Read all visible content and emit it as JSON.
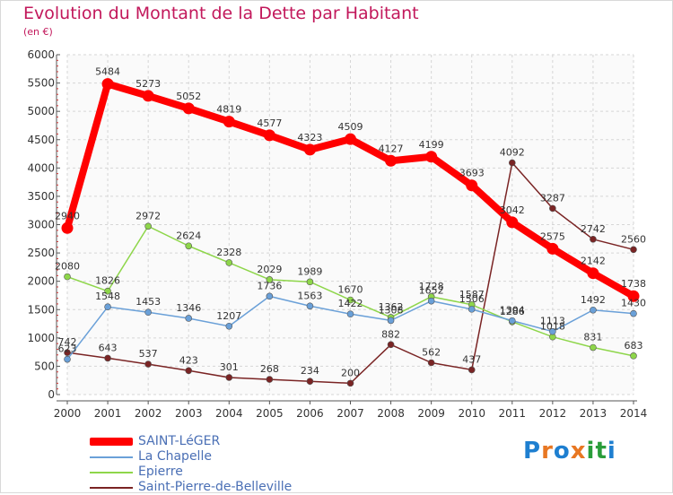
{
  "chart_data": {
    "type": "line",
    "title": "Evolution du Montant de la Dette par Habitant",
    "subtitle": "(en €)",
    "x": [
      "2000",
      "2001",
      "2002",
      "2003",
      "2004",
      "2005",
      "2006",
      "2007",
      "2008",
      "2009",
      "2010",
      "2011",
      "2012",
      "2013",
      "2014"
    ],
    "ylim": [
      0,
      6000
    ],
    "yticks": [
      0,
      500,
      1000,
      1500,
      2000,
      2500,
      3000,
      3500,
      4000,
      4500,
      5000,
      5500,
      6000
    ],
    "grid": true,
    "legend_position": "bottom-left",
    "series": [
      {
        "name": "SAINT-LéGER",
        "color": "#ff0000",
        "values": [
          2940,
          5484,
          5273,
          5052,
          4819,
          4577,
          4323,
          4509,
          4127,
          4199,
          3693,
          3042,
          2575,
          2142,
          1738
        ]
      },
      {
        "name": "La Chapelle",
        "color": "#6aa0d8",
        "values": [
          623,
          1548,
          1453,
          1346,
          1207,
          1736,
          1563,
          1422,
          1308,
          1652,
          1506,
          1304,
          1113,
          1492,
          1430
        ]
      },
      {
        "name": "Epierre",
        "color": "#8ed64a",
        "values": [
          2080,
          1826,
          2972,
          2624,
          2328,
          2029,
          1989,
          1670,
          1362,
          1728,
          1587,
          1286,
          1018,
          831,
          683
        ]
      },
      {
        "name": "Saint-Pierre-de-Belleville",
        "color": "#7a2424",
        "values": [
          742,
          643,
          537,
          423,
          301,
          268,
          234,
          200,
          882,
          562,
          437,
          4092,
          3287,
          2742,
          2560
        ]
      }
    ]
  },
  "branding": {
    "logo_letters": [
      "P",
      "r",
      "o",
      "x",
      "i",
      "t",
      "i"
    ],
    "logo_colors": [
      "#1e7fd0",
      "#e87722",
      "#1e7fd0",
      "#e87722",
      "#2a9d3a",
      "#2a9d3a",
      "#1e7fd0"
    ]
  }
}
